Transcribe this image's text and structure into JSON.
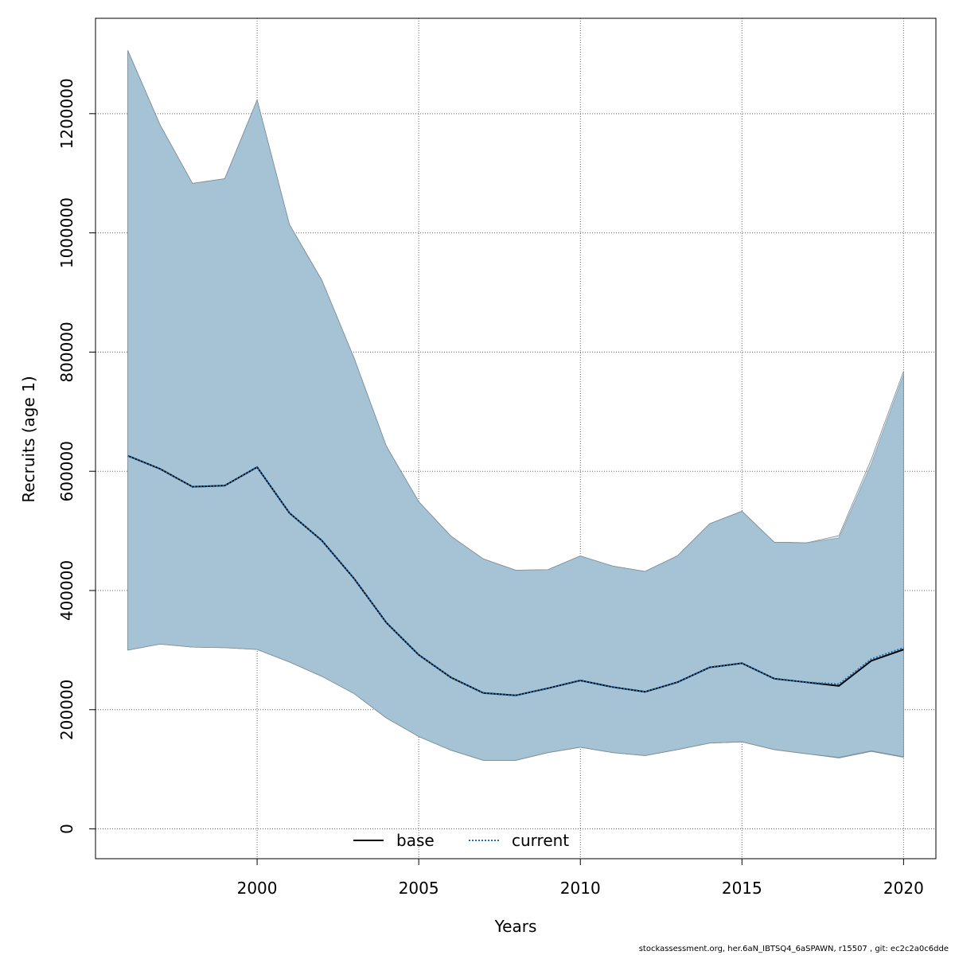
{
  "chart_data": {
    "type": "area",
    "xlabel": "Years",
    "ylabel": "Recruits (age 1)",
    "xlim": [
      1995,
      2021
    ],
    "ylim": [
      -50000,
      1360000
    ],
    "x_ticks": [
      2000,
      2005,
      2010,
      2015,
      2020
    ],
    "y_ticks": [
      0,
      200000,
      400000,
      600000,
      800000,
      1000000,
      1200000
    ],
    "grid": true,
    "legend_position": "bottom-center",
    "band_color": "#a5c3d4",
    "x": [
      1996,
      1997,
      1998,
      1999,
      2000,
      2001,
      2002,
      2003,
      2004,
      2005,
      2006,
      2007,
      2008,
      2009,
      2010,
      2011,
      2012,
      2013,
      2014,
      2015,
      2016,
      2017,
      2018,
      2019,
      2020
    ],
    "series": [
      {
        "name": "base",
        "color": "#000000",
        "style": "solid",
        "values": [
          626000,
          604000,
          574000,
          576000,
          607000,
          530000,
          484000,
          420000,
          346000,
          292000,
          254000,
          228000,
          224000,
          236000,
          249000,
          238000,
          230000,
          246000,
          271000,
          278000,
          252000,
          246000,
          240000,
          282000,
          301000
        ],
        "lower": [
          300000,
          310000,
          305000,
          304000,
          301000,
          280000,
          256000,
          227000,
          186000,
          155000,
          132000,
          115000,
          115000,
          128000,
          137000,
          128000,
          123000,
          133000,
          144000,
          146000,
          133000,
          126000,
          119000,
          130000,
          120000
        ],
        "upper": [
          1306000,
          1181000,
          1083000,
          1091000,
          1223000,
          1014000,
          921000,
          790000,
          642000,
          549000,
          491000,
          453000,
          434000,
          435000,
          458000,
          441000,
          432000,
          458000,
          512000,
          533000,
          481000,
          480000,
          488000,
          612000,
          762000
        ]
      },
      {
        "name": "current",
        "color": "#1a6fb4",
        "style": "dotted",
        "values": [
          626000,
          604000,
          574000,
          576000,
          607000,
          530000,
          484000,
          420000,
          346000,
          292000,
          254000,
          228000,
          224000,
          236000,
          249000,
          238000,
          230000,
          246000,
          271000,
          278000,
          252000,
          246000,
          243000,
          285000,
          304000
        ],
        "lower": [
          300000,
          310000,
          305000,
          304000,
          301000,
          280000,
          256000,
          227000,
          186000,
          155000,
          132000,
          115000,
          115000,
          128000,
          137000,
          128000,
          123000,
          133000,
          144000,
          146000,
          133000,
          126000,
          120000,
          131000,
          121000
        ],
        "upper": [
          1306000,
          1181000,
          1083000,
          1091000,
          1223000,
          1014000,
          921000,
          790000,
          642000,
          549000,
          491000,
          453000,
          434000,
          435000,
          458000,
          441000,
          432000,
          458000,
          512000,
          533000,
          481000,
          480000,
          492000,
          620000,
          768000
        ]
      }
    ]
  },
  "footer": "stockassessment.org, her.6aN_IBTSQ4_6aSPAWN, r15507 , git: ec2c2a0c6dde"
}
